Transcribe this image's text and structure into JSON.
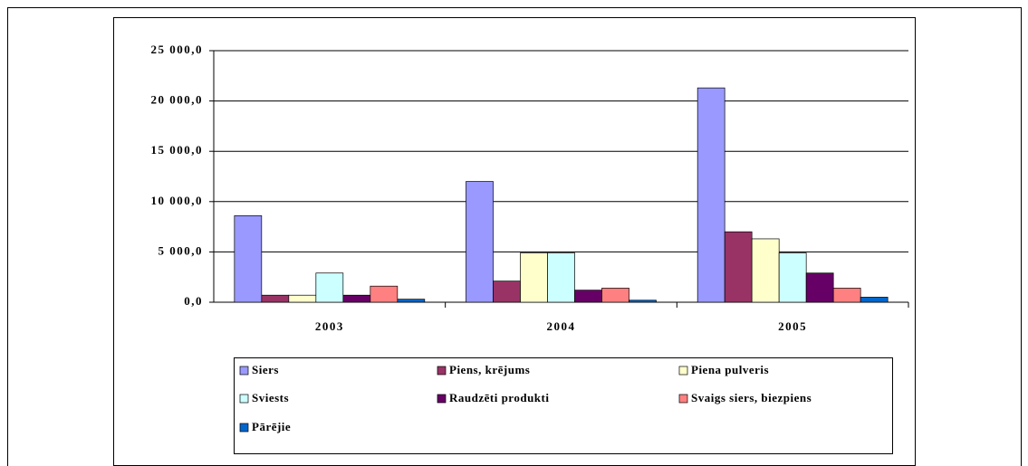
{
  "chart_data": {
    "type": "bar",
    "categories": [
      "2003",
      "2004",
      "2005"
    ],
    "series": [
      {
        "name": "Siers",
        "color": "#9999ff",
        "values": [
          8600,
          12000,
          21300
        ]
      },
      {
        "name": "Piens, krējums",
        "color": "#993366",
        "values": [
          700,
          2100,
          7000
        ]
      },
      {
        "name": "Piena pulveris",
        "color": "#ffffcc",
        "values": [
          700,
          4900,
          6300
        ]
      },
      {
        "name": "Sviests",
        "color": "#ccffff",
        "values": [
          2900,
          4900,
          4900
        ]
      },
      {
        "name": "Raudzēti produkti",
        "color": "#660066",
        "values": [
          700,
          1200,
          2900
        ]
      },
      {
        "name": "Svaigs siers, biezpiens",
        "color": "#ff8080",
        "values": [
          1600,
          1400,
          1400
        ]
      },
      {
        "name": "Pārējie",
        "color": "#0066cc",
        "values": [
          300,
          200,
          500
        ]
      }
    ],
    "ylim": [
      0,
      25000
    ],
    "yticks": [
      {
        "value": 0,
        "label": "0,0"
      },
      {
        "value": 5000,
        "label": "5 000,0"
      },
      {
        "value": 10000,
        "label": "10 000,0"
      },
      {
        "value": 15000,
        "label": "15 000,0"
      },
      {
        "value": 20000,
        "label": "20 000,0"
      },
      {
        "value": 25000,
        "label": "25 000,0"
      }
    ],
    "grid": true,
    "legend": "bottom"
  }
}
